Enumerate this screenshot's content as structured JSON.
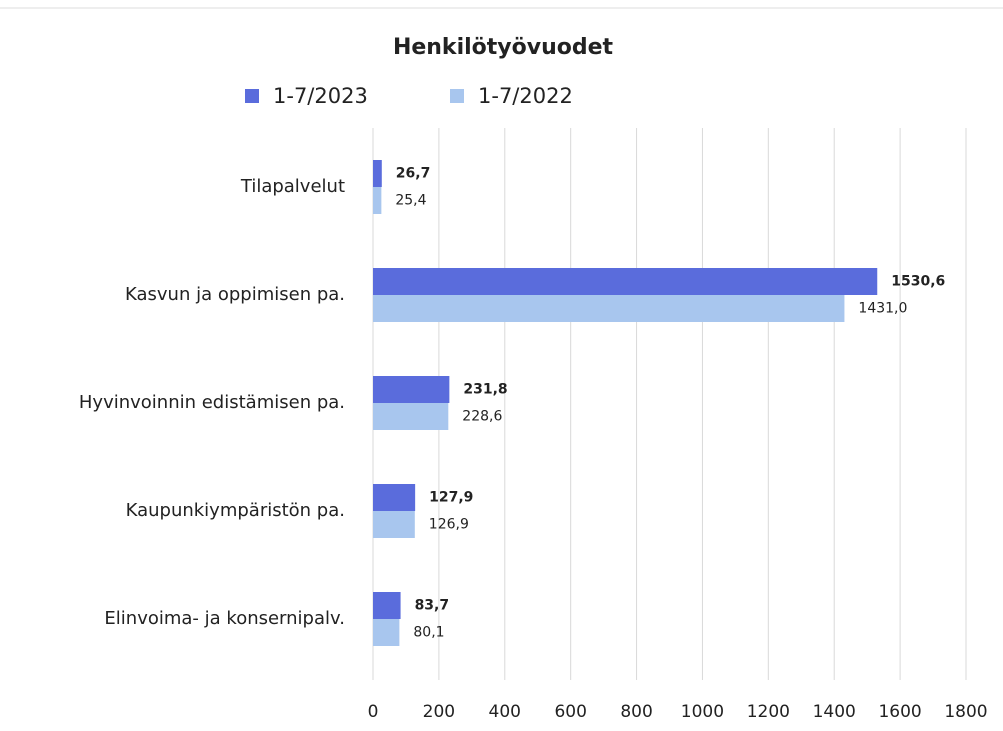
{
  "chart_data": {
    "type": "bar",
    "orientation": "horizontal",
    "title": "Henkilötyövuodet",
    "categories": [
      "Tilapalvelut",
      "Kasvun ja oppimisen pa.",
      "Hyvinvoinnin edistämisen pa.",
      "Kaupunkiympäristön pa.",
      "Elinvoima- ja konsernipalv."
    ],
    "series": [
      {
        "name": "1-7/2023",
        "color": "#5a6cdc",
        "values": [
          26.7,
          1530.6,
          231.8,
          127.9,
          83.7
        ],
        "value_labels": [
          "26,7",
          "1530,6",
          "231,8",
          "127,9",
          "83,7"
        ]
      },
      {
        "name": "1-7/2022",
        "color": "#a8c6ee",
        "values": [
          25.4,
          1431.0,
          228.6,
          126.9,
          80.1
        ],
        "value_labels": [
          "25,4",
          "1431,0",
          "228,6",
          "126,9",
          "80,1"
        ]
      }
    ],
    "xlim": [
      0,
      1800
    ],
    "xticks": [
      0,
      200,
      400,
      600,
      800,
      1000,
      1200,
      1400,
      1600,
      1800
    ],
    "grid": true,
    "legend": "top"
  }
}
